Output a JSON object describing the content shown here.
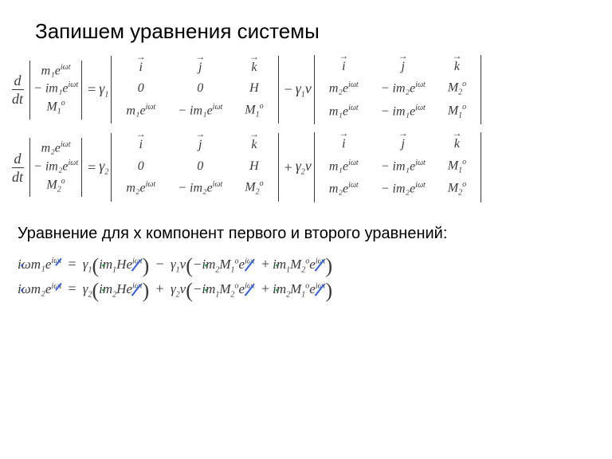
{
  "colors": {
    "text": "#3a3a3a",
    "strike_blue": "#2a5fff",
    "strike_green": "#1aaa3f",
    "background": "#ffffff"
  },
  "fonts": {
    "title": 26,
    "subtitle": 20,
    "math": 17
  },
  "title": "Запишем уравнения системы",
  "subtitle": "Уравнение для x компонент первого и второго уравнений:",
  "tok": {
    "ddt": "d",
    "dt": "dt",
    "eq": "=",
    "minus": "−",
    "plus": "+",
    "g1": "γ",
    "g1s": "1",
    "g2": "γ",
    "g2s": "2",
    "g1v": "γ",
    "g1vs": "1",
    "nu": "ν",
    "g2v": "γ",
    "g2vs": "2",
    "i": "i",
    "j": "j",
    "k": "k",
    "zero": "0",
    "H": "H",
    "m1e": "m₁e",
    "m2e": "m₂e",
    "iwt": "iωt",
    "nm1e": "− im₁e",
    "nm2e": "− im₂e",
    "M1o": "M",
    "M2o": "M",
    "o": "o",
    "s1": "1",
    "s2": "2",
    "om": "ω",
    "io": "i"
  }
}
